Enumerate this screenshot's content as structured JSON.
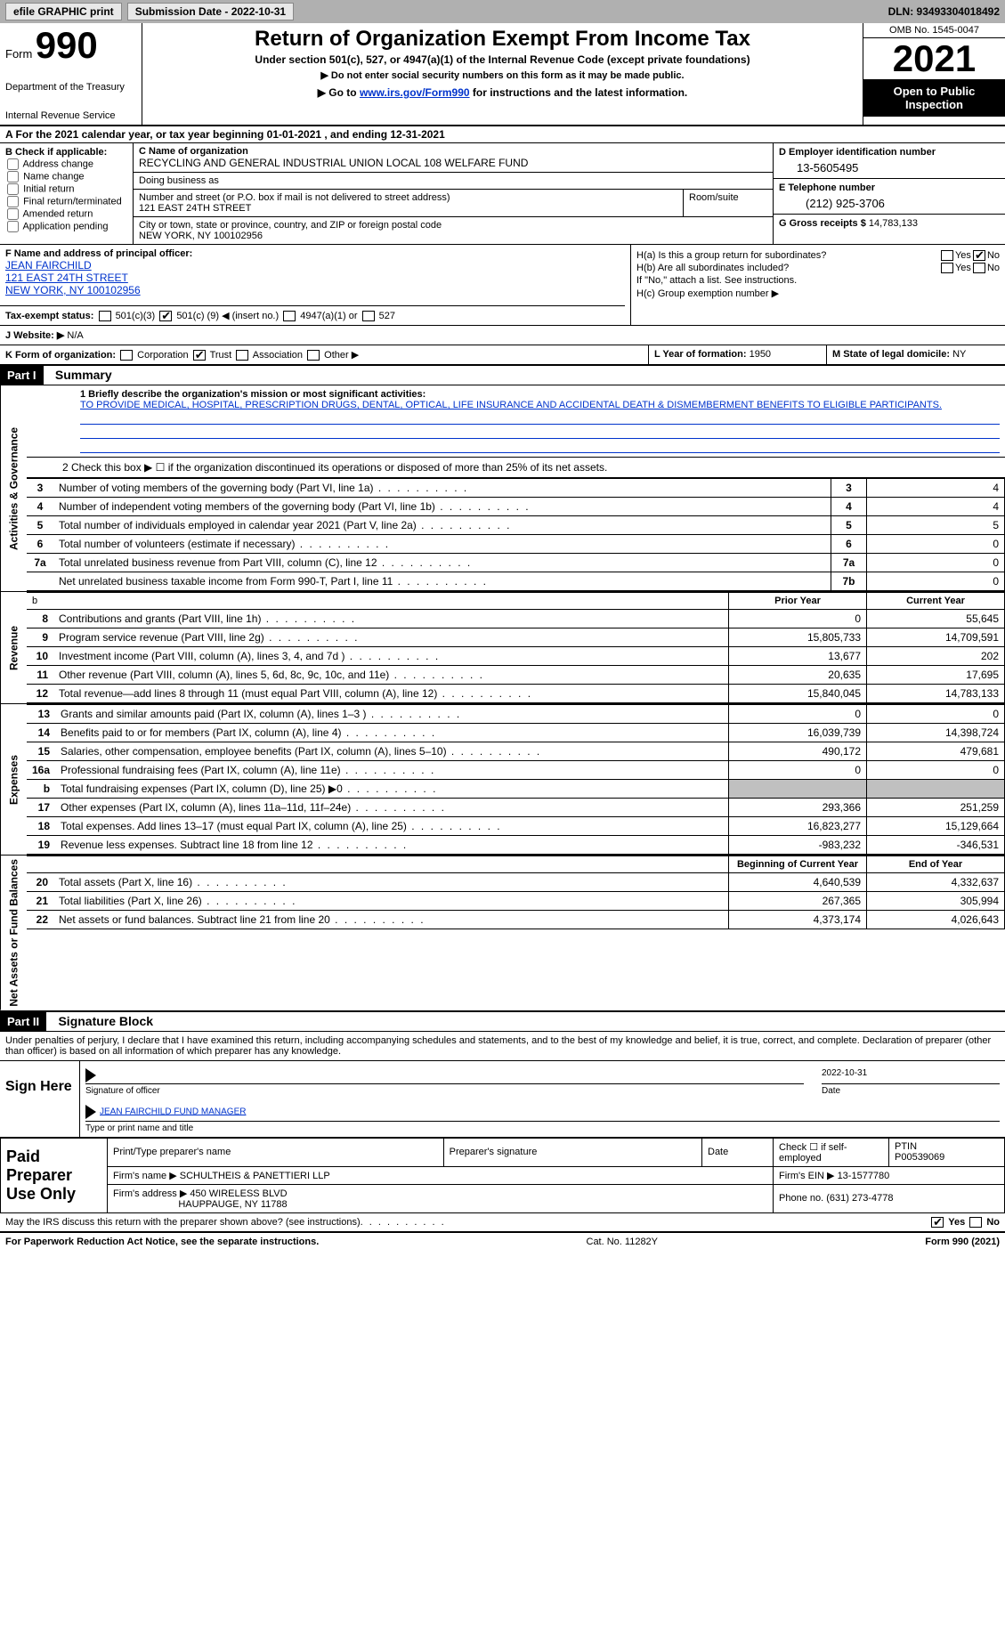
{
  "topbar": {
    "efile": "efile GRAPHIC print",
    "submission": "Submission Date - 2022-10-31",
    "dln": "DLN: 93493304018492"
  },
  "header": {
    "form_label": "Form",
    "form_number": "990",
    "title": "Return of Organization Exempt From Income Tax",
    "sub1": "Under section 501(c), 527, or 4947(a)(1) of the Internal Revenue Code (except private foundations)",
    "sub2": "▶ Do not enter social security numbers on this form as it may be made public.",
    "sub3_pre": "▶ Go to ",
    "sub3_link": "www.irs.gov/Form990",
    "sub3_post": " for instructions and the latest information.",
    "dept": "Department of the Treasury",
    "irs": "Internal Revenue Service",
    "omb": "OMB No. 1545-0047",
    "year": "2021",
    "open": "Open to Public Inspection"
  },
  "line_a": "A For the 2021 calendar year, or tax year beginning 01-01-2021   , and ending 12-31-2021",
  "col_b": {
    "header": "B Check if applicable:",
    "items": [
      "Address change",
      "Name change",
      "Initial return",
      "Final return/terminated",
      "Amended return",
      "Application pending"
    ]
  },
  "col_c": {
    "name_label": "C Name of organization",
    "org_name": "RECYCLING AND GENERAL INDUSTRIAL UNION LOCAL 108 WELFARE FUND",
    "dba_label": "Doing business as",
    "addr_label": "Number and street (or P.O. box if mail is not delivered to street address)",
    "room_label": "Room/suite",
    "addr": "121 EAST 24TH STREET",
    "city_label": "City or town, state or province, country, and ZIP or foreign postal code",
    "city": "NEW YORK, NY  100102956"
  },
  "col_d": {
    "ein_label": "D Employer identification number",
    "ein": "13-5605495",
    "phone_label": "E Telephone number",
    "phone": "(212) 925-3706",
    "gross_label": "G Gross receipts $",
    "gross": "14,783,133"
  },
  "col_f": {
    "label": "F Name and address of principal officer:",
    "name": "JEAN FAIRCHILD",
    "addr1": "121 EAST 24TH STREET",
    "addr2": "NEW YORK, NY  100102956",
    "tax_label": "Tax-exempt status:",
    "c3": "501(c)(3)",
    "c_other_pre": "501(c) (",
    "c_other_num": "9",
    "c_other_post": ") ◀ (insert no.)",
    "c4947": "4947(a)(1) or",
    "c527": "527"
  },
  "col_h": {
    "ha": "H(a)  Is this a group return for subordinates?",
    "hb": "H(b)  Are all subordinates included?",
    "hb_note": "If \"No,\" attach a list. See instructions.",
    "hc": "H(c)  Group exemption number ▶",
    "yes": "Yes",
    "no": "No"
  },
  "row_j": {
    "j_label": "J  Website: ▶",
    "j_val": "N/A",
    "k_label": "K Form of organization:",
    "k_corp": "Corporation",
    "k_trust": "Trust",
    "k_assoc": "Association",
    "k_other": "Other ▶",
    "l_label": "L Year of formation:",
    "l_val": "1950",
    "m_label": "M State of legal domicile:",
    "m_val": "NY"
  },
  "part1": {
    "header": "Part I",
    "title": "Summary",
    "line1_label": "1  Briefly describe the organization's mission or most significant activities:",
    "mission": "TO PROVIDE MEDICAL, HOSPITAL, PRESCRIPTION DRUGS, DENTAL, OPTICAL, LIFE INSURANCE AND ACCIDENTAL DEATH & DISMEMBERMENT BENEFITS TO ELIGIBLE PARTICIPANTS.",
    "line2": "2   Check this box ▶ ☐  if the organization discontinued its operations or disposed of more than 25% of its net assets.",
    "vert_activities": "Activities & Governance",
    "vert_revenue": "Revenue",
    "vert_expenses": "Expenses",
    "vert_net": "Net Assets or Fund Balances",
    "rows_gov": [
      {
        "n": "3",
        "desc": "Number of voting members of the governing body (Part VI, line 1a)",
        "box": "3",
        "val": "4"
      },
      {
        "n": "4",
        "desc": "Number of independent voting members of the governing body (Part VI, line 1b)",
        "box": "4",
        "val": "4"
      },
      {
        "n": "5",
        "desc": "Total number of individuals employed in calendar year 2021 (Part V, line 2a)",
        "box": "5",
        "val": "5"
      },
      {
        "n": "6",
        "desc": "Total number of volunteers (estimate if necessary)",
        "box": "6",
        "val": "0"
      },
      {
        "n": "7a",
        "desc": "Total unrelated business revenue from Part VIII, column (C), line 12",
        "box": "7a",
        "val": "0"
      },
      {
        "n": "",
        "desc": "Net unrelated business taxable income from Form 990-T, Part I, line 11",
        "box": "7b",
        "val": "0"
      }
    ],
    "col_py": "Prior Year",
    "col_cy": "Current Year",
    "rows_rev": [
      {
        "n": "8",
        "desc": "Contributions and grants (Part VIII, line 1h)",
        "py": "0",
        "cy": "55,645"
      },
      {
        "n": "9",
        "desc": "Program service revenue (Part VIII, line 2g)",
        "py": "15,805,733",
        "cy": "14,709,591"
      },
      {
        "n": "10",
        "desc": "Investment income (Part VIII, column (A), lines 3, 4, and 7d )",
        "py": "13,677",
        "cy": "202"
      },
      {
        "n": "11",
        "desc": "Other revenue (Part VIII, column (A), lines 5, 6d, 8c, 9c, 10c, and 11e)",
        "py": "20,635",
        "cy": "17,695"
      },
      {
        "n": "12",
        "desc": "Total revenue—add lines 8 through 11 (must equal Part VIII, column (A), line 12)",
        "py": "15,840,045",
        "cy": "14,783,133"
      }
    ],
    "rows_exp": [
      {
        "n": "13",
        "desc": "Grants and similar amounts paid (Part IX, column (A), lines 1–3 )",
        "py": "0",
        "cy": "0"
      },
      {
        "n": "14",
        "desc": "Benefits paid to or for members (Part IX, column (A), line 4)",
        "py": "16,039,739",
        "cy": "14,398,724"
      },
      {
        "n": "15",
        "desc": "Salaries, other compensation, employee benefits (Part IX, column (A), lines 5–10)",
        "py": "490,172",
        "cy": "479,681"
      },
      {
        "n": "16a",
        "desc": "Professional fundraising fees (Part IX, column (A), line 11e)",
        "py": "0",
        "cy": "0"
      },
      {
        "n": "b",
        "desc": "Total fundraising expenses (Part IX, column (D), line 25) ▶0",
        "py": "gray",
        "cy": "gray"
      },
      {
        "n": "17",
        "desc": "Other expenses (Part IX, column (A), lines 11a–11d, 11f–24e)",
        "py": "293,366",
        "cy": "251,259"
      },
      {
        "n": "18",
        "desc": "Total expenses. Add lines 13–17 (must equal Part IX, column (A), line 25)",
        "py": "16,823,277",
        "cy": "15,129,664"
      },
      {
        "n": "19",
        "desc": "Revenue less expenses. Subtract line 18 from line 12",
        "py": "-983,232",
        "cy": "-346,531"
      }
    ],
    "col_beg": "Beginning of Current Year",
    "col_end": "End of Year",
    "rows_net": [
      {
        "n": "20",
        "desc": "Total assets (Part X, line 16)",
        "py": "4,640,539",
        "cy": "4,332,637"
      },
      {
        "n": "21",
        "desc": "Total liabilities (Part X, line 26)",
        "py": "267,365",
        "cy": "305,994"
      },
      {
        "n": "22",
        "desc": "Net assets or fund balances. Subtract line 21 from line 20",
        "py": "4,373,174",
        "cy": "4,026,643"
      }
    ]
  },
  "part2": {
    "header": "Part II",
    "title": "Signature Block",
    "declare": "Under penalties of perjury, I declare that I have examined this return, including accompanying schedules and statements, and to the best of my knowledge and belief, it is true, correct, and complete. Declaration of preparer (other than officer) is based on all information of which preparer has any knowledge.",
    "sign_here": "Sign Here",
    "sig_officer": "Signature of officer",
    "sig_date_val": "2022-10-31",
    "sig_date": "Date",
    "sig_name": "JEAN FAIRCHILD  FUND MANAGER",
    "sig_name_label": "Type or print name and title",
    "paid": "Paid Preparer Use Only",
    "prep_name_label": "Print/Type preparer's name",
    "prep_sig_label": "Preparer's signature",
    "prep_date_label": "Date",
    "prep_check": "Check ☐ if self-employed",
    "ptin_label": "PTIN",
    "ptin": "P00539069",
    "firm_name_label": "Firm's name    ▶",
    "firm_name": "SCHULTHEIS & PANETTIERI LLP",
    "firm_ein_label": "Firm's EIN ▶",
    "firm_ein": "13-1577780",
    "firm_addr_label": "Firm's address ▶",
    "firm_addr1": "450 WIRELESS BLVD",
    "firm_addr2": "HAUPPAUGE, NY  11788",
    "firm_phone_label": "Phone no.",
    "firm_phone": "(631) 273-4778",
    "discuss": "May the IRS discuss this return with the preparer shown above? (see instructions)",
    "yes": "Yes",
    "no": "No"
  },
  "footer": {
    "paperwork": "For Paperwork Reduction Act Notice, see the separate instructions.",
    "cat": "Cat. No. 11282Y",
    "form": "Form 990 (2021)"
  }
}
